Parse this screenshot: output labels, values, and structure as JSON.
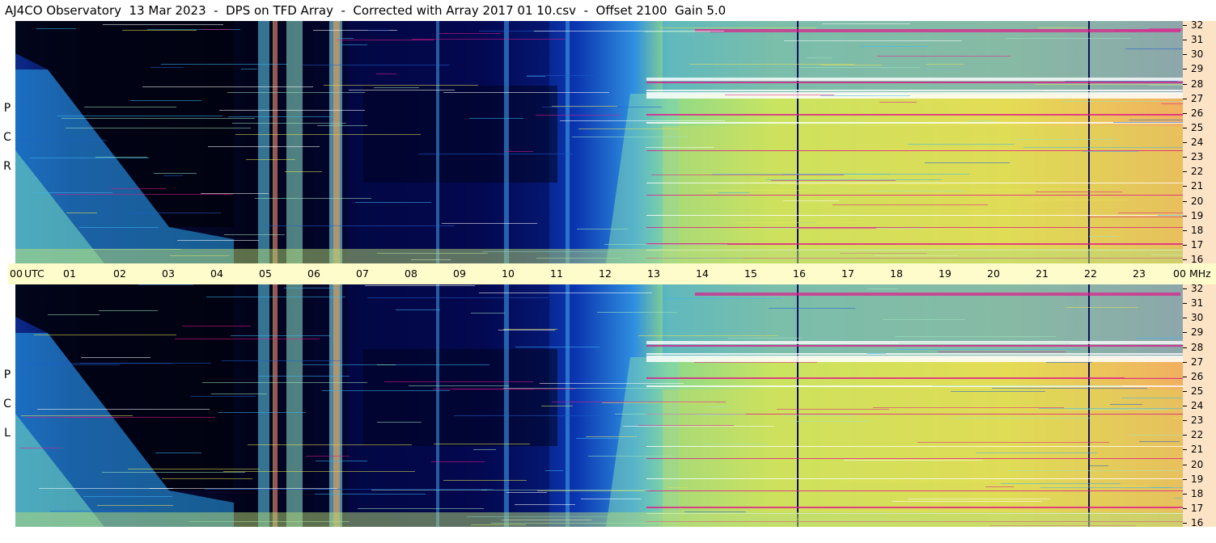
{
  "header": {
    "title": "AJ4CO Observatory  13 Mar 2023  -  DPS on TFD Array  -  Corrected with Array 2017 01 10.csv  -  Offset 2100  Gain 5.0"
  },
  "time_axis": {
    "labels": [
      "00",
      "UTC",
      "01",
      "02",
      "03",
      "04",
      "05",
      "06",
      "07",
      "08",
      "09",
      "10",
      "11",
      "12",
      "13",
      "14",
      "15",
      "16",
      "17",
      "18",
      "19",
      "20",
      "21",
      "22",
      "23",
      "00",
      "MHz"
    ]
  },
  "panels": {
    "top": {
      "polarization": [
        "R",
        "C",
        "P"
      ]
    },
    "bottom": {
      "polarization": [
        "L",
        "C",
        "P"
      ]
    }
  },
  "freq_axis": {
    "labels": [
      "32",
      "31",
      "30",
      "29",
      "28",
      "27",
      "26",
      "25",
      "24",
      "23",
      "22",
      "21",
      "20",
      "19",
      "18",
      "17",
      "16"
    ]
  },
  "chart_data": {
    "type": "heatmap",
    "title": "AJ4CO Observatory  13 Mar 2023  -  DPS on TFD Array  -  Corrected with Array 2017 01 10.csv  -  Offset 2100  Gain 5.0",
    "x": {
      "unit": "UTC",
      "range": [
        0,
        24
      ],
      "ticks": [
        "00",
        "01",
        "02",
        "03",
        "04",
        "05",
        "06",
        "07",
        "08",
        "09",
        "10",
        "11",
        "12",
        "13",
        "14",
        "15",
        "16",
        "17",
        "18",
        "19",
        "20",
        "21",
        "22",
        "23",
        "00"
      ]
    },
    "y": {
      "unit": "MHz",
      "range": [
        16,
        32
      ],
      "ticks": [
        16,
        17,
        18,
        19,
        20,
        21,
        22,
        23,
        24,
        25,
        26,
        27,
        28,
        29,
        30,
        31,
        32
      ]
    },
    "panels": [
      {
        "polarization": "RCP"
      },
      {
        "polarization": "LCP"
      }
    ],
    "colors": {
      "low": "#000018",
      "mid_low": "#0a45c8",
      "mid": "#2ea8f0",
      "mid_high": "#6fd9a8",
      "high": "#e8e455",
      "peak": "#f4a45a",
      "saturated": "#e01a8a",
      "white": "#ffffff"
    }
  }
}
